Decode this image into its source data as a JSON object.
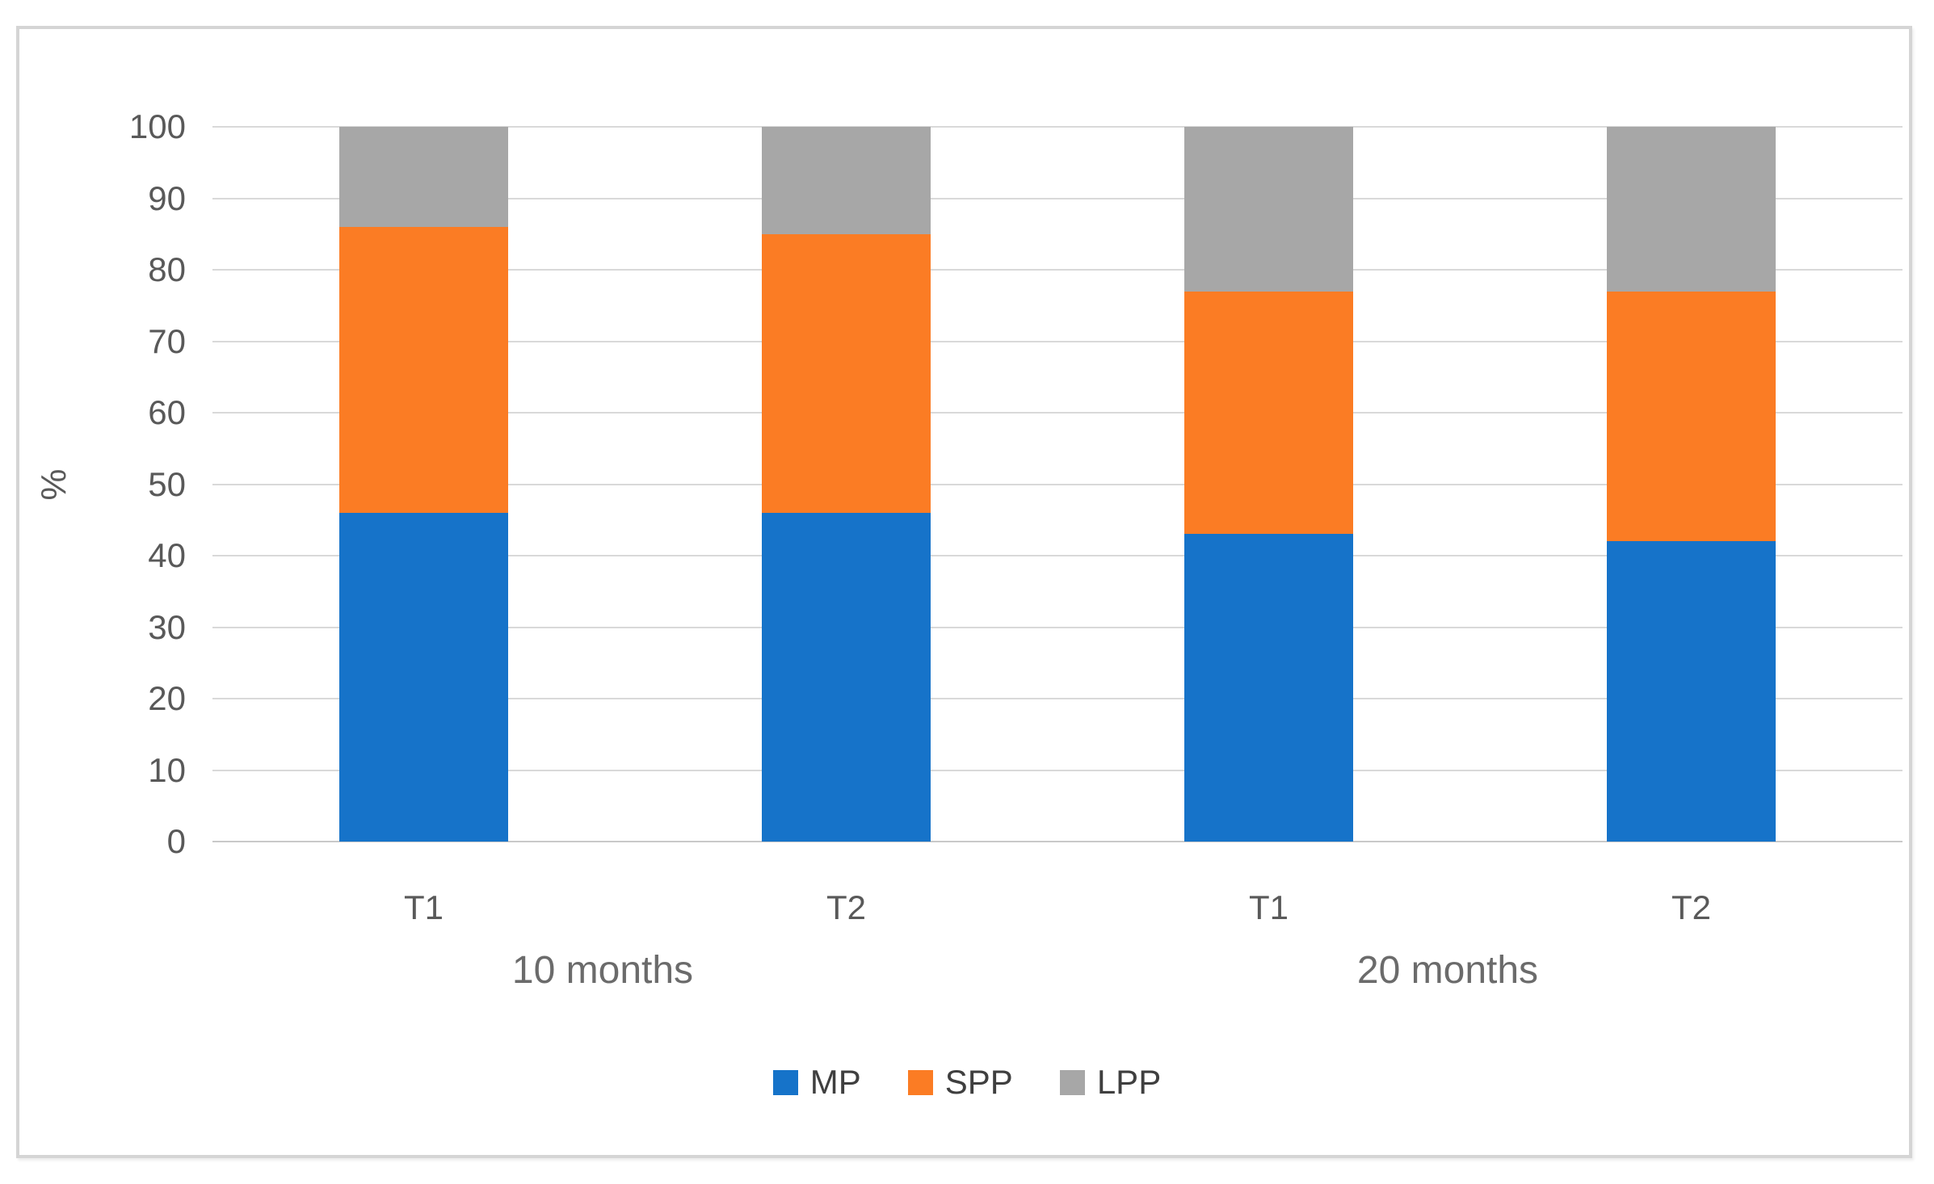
{
  "figure": {
    "background_color": "#ffffff",
    "border_color": "#d5d5d5"
  },
  "chart_data": {
    "type": "bar",
    "stacked": true,
    "title": "",
    "xlabel": "",
    "ylabel": "%",
    "ylim": [
      0,
      100
    ],
    "yticks": [
      0,
      10,
      20,
      30,
      40,
      50,
      60,
      70,
      80,
      90,
      100
    ],
    "grid": true,
    "gridline_color": "#d9d9d9",
    "axis_line_color": "#c9c9c9",
    "tick_label_color": "#595959",
    "categories": [
      "T1",
      "T2",
      "T1",
      "T2"
    ],
    "groups": [
      {
        "label": "10 months",
        "span": [
          0,
          1
        ]
      },
      {
        "label": "20 months",
        "span": [
          2,
          3
        ]
      }
    ],
    "series": [
      {
        "name": "MP",
        "color": "#1673c9",
        "values": [
          46,
          46,
          43,
          42
        ]
      },
      {
        "name": "SPP",
        "color": "#fb7c24",
        "values": [
          40,
          39,
          34,
          35
        ]
      },
      {
        "name": "LPP",
        "color": "#a7a7a7",
        "values": [
          14,
          15,
          23,
          23
        ]
      }
    ],
    "legend_position": "bottom"
  }
}
